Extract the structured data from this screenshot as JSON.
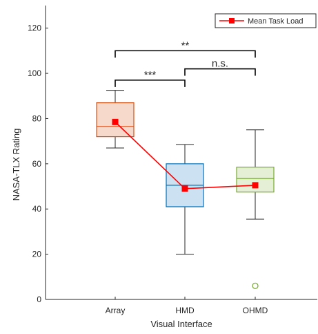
{
  "chart_data": {
    "type": "box",
    "xlabel": "Visual Interface",
    "ylabel": "NASA-TLX Rating",
    "ylim": [
      0,
      130
    ],
    "yticks": [
      0,
      20,
      40,
      60,
      80,
      100,
      120
    ],
    "grid": false,
    "legend": {
      "position": "top-right",
      "entries": [
        {
          "label": "Mean Task Load",
          "color": "#ff0000",
          "marker": "square"
        }
      ]
    },
    "categories": [
      "Array",
      "HMD",
      "OHMD"
    ],
    "boxes": [
      {
        "category": "Array",
        "whisker_low": 67,
        "q1": 72,
        "median": 76.5,
        "q3": 87,
        "whisker_high": 92.5,
        "outliers": [],
        "edge_color": "#d95319",
        "fill_color": "#f7d9cb"
      },
      {
        "category": "HMD",
        "whisker_low": 20,
        "q1": 41,
        "median": 50.5,
        "q3": 60,
        "whisker_high": 68.5,
        "outliers": [],
        "edge_color": "#0072bd",
        "fill_color": "#cce2f2"
      },
      {
        "category": "OHMD",
        "whisker_low": 35.5,
        "q1": 47.5,
        "median": 53.5,
        "q3": 58.5,
        "whisker_high": 75,
        "outliers": [
          6
        ],
        "edge_color": "#77ac30",
        "fill_color": "#e4efd6"
      }
    ],
    "series": [
      {
        "name": "Mean Task Load",
        "color": "#ff0000",
        "values": [
          78.5,
          49,
          50.5
        ]
      }
    ],
    "significance": [
      {
        "from": "Array",
        "to": "HMD",
        "label": "***",
        "y": 97
      },
      {
        "from": "HMD",
        "to": "OHMD",
        "label": "n.s.",
        "y": 102
      },
      {
        "from": "Array",
        "to": "OHMD",
        "label": "**",
        "y": 110
      }
    ]
  }
}
